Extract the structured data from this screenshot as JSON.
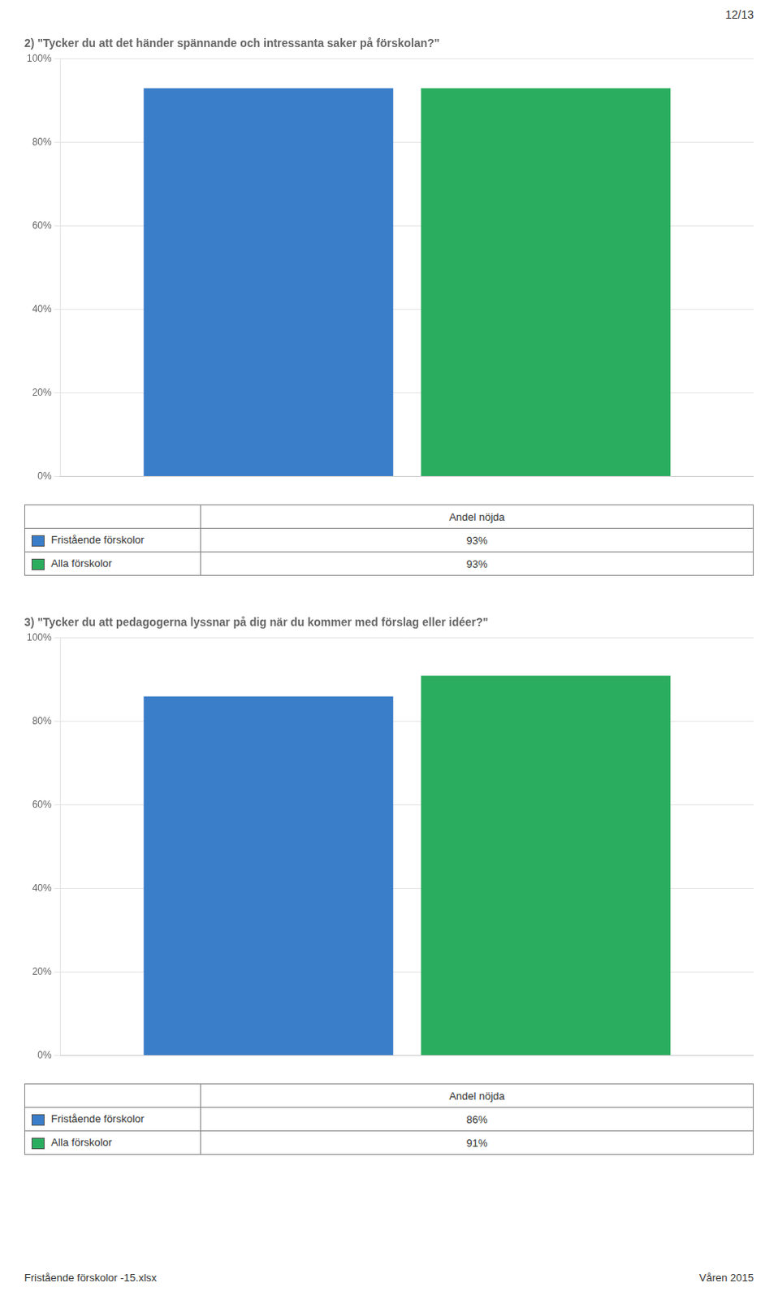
{
  "chart_data": [
    {
      "type": "bar",
      "title": "2) \"Tycker du att det händer spännande och intressanta saker på förskolan?\"",
      "categories": [
        null
      ],
      "series": [
        {
          "name": "Fristående förskolor",
          "color": "#3A7DC9",
          "values": [
            93
          ],
          "value_labels": [
            "93%"
          ]
        },
        {
          "name": "Alla förskolor",
          "color": "#2AAD5E",
          "values": [
            93
          ],
          "value_labels": [
            "93%"
          ]
        }
      ],
      "ylim": [
        0,
        100
      ],
      "yticks": [
        {
          "value": 0,
          "label": "0%"
        },
        {
          "value": 20,
          "label": "20%"
        },
        {
          "value": 40,
          "label": "40%"
        },
        {
          "value": 60,
          "label": "60%"
        },
        {
          "value": 80,
          "label": "80%"
        },
        {
          "value": 100,
          "label": "100%"
        }
      ],
      "grid": true,
      "legend": "bottom",
      "annotations": [
        "Andel nöjda"
      ]
    },
    {
      "type": "bar",
      "title": "3) \"Tycker du att pedagogerna lyssnar på dig när du kommer med förslag eller idéer?\"",
      "categories": [
        null
      ],
      "series": [
        {
          "name": "Fristående förskolor",
          "color": "#3A7DC9",
          "values": [
            86
          ],
          "value_labels": [
            "86%"
          ]
        },
        {
          "name": "Alla förskolor",
          "color": "#2AAD5E",
          "values": [
            91
          ],
          "value_labels": [
            "91%"
          ]
        }
      ],
      "ylim": [
        0,
        100
      ],
      "yticks": [
        {
          "value": 0,
          "label": "0%"
        },
        {
          "value": 20,
          "label": "20%"
        },
        {
          "value": 40,
          "label": "40%"
        },
        {
          "value": 60,
          "label": "60%"
        },
        {
          "value": 80,
          "label": "80%"
        },
        {
          "value": 100,
          "label": "100%"
        }
      ],
      "grid": true,
      "legend": "bottom",
      "annotations": [
        "Andel nöjda"
      ]
    }
  ],
  "annotations": [
    "12/13",
    "Fristående förskolor -15.xlsx",
    "Våren 2015"
  ]
}
